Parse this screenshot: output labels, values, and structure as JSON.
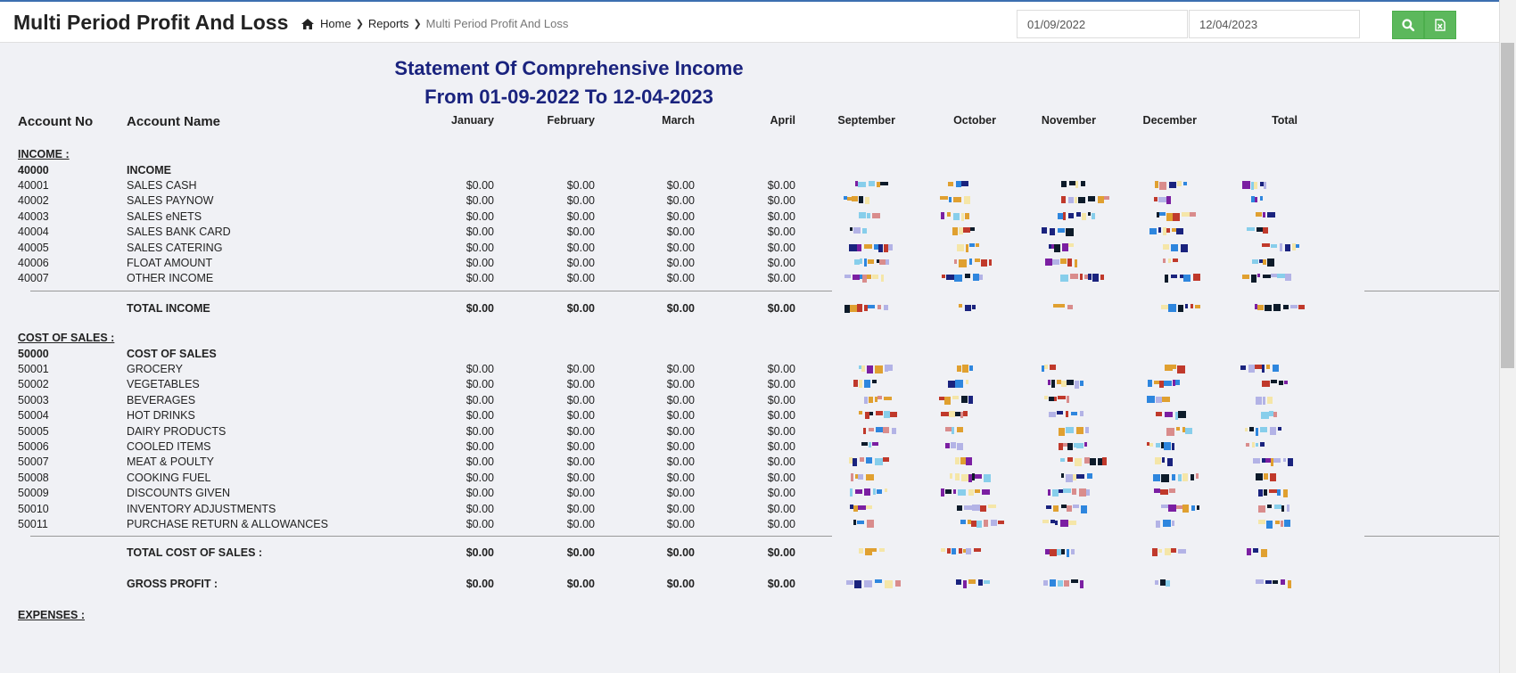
{
  "header": {
    "title": "Multi Period Profit And Loss",
    "breadcrumb": {
      "home": "Home",
      "reports": "Reports",
      "current": "Multi Period Profit And Loss"
    },
    "date_from": "01/09/2022",
    "date_to": "12/04/2023",
    "search_icon": "search-icon",
    "excel_icon": "excel-icon",
    "accent_color": "#5cb85c"
  },
  "statement": {
    "title": "Statement Of Comprehensive Income",
    "period": "From 01-09-2022 To 12-04-2023"
  },
  "columns": {
    "account_no": "Account No",
    "account_name": "Account Name",
    "months": [
      "January",
      "February",
      "March",
      "April",
      "September",
      "October",
      "November",
      "December",
      "Total"
    ]
  },
  "income": {
    "section_label": "INCOME :",
    "group": {
      "no": "40000",
      "name": "INCOME"
    },
    "rows": [
      {
        "no": "40001",
        "name": "SALES CASH",
        "values": [
          "$0.00",
          "$0.00",
          "$0.00",
          "$0.00"
        ]
      },
      {
        "no": "40002",
        "name": "SALES PAYNOW",
        "values": [
          "$0.00",
          "$0.00",
          "$0.00",
          "$0.00"
        ]
      },
      {
        "no": "40003",
        "name": "SALES eNETS",
        "values": [
          "$0.00",
          "$0.00",
          "$0.00",
          "$0.00"
        ]
      },
      {
        "no": "40004",
        "name": "SALES BANK CARD",
        "values": [
          "$0.00",
          "$0.00",
          "$0.00",
          "$0.00"
        ]
      },
      {
        "no": "40005",
        "name": "SALES CATERING",
        "values": [
          "$0.00",
          "$0.00",
          "$0.00",
          "$0.00"
        ]
      },
      {
        "no": "40006",
        "name": "FLOAT AMOUNT",
        "values": [
          "$0.00",
          "$0.00",
          "$0.00",
          "$0.00"
        ]
      },
      {
        "no": "40007",
        "name": "OTHER INCOME",
        "values": [
          "$0.00",
          "$0.00",
          "$0.00",
          "$0.00"
        ]
      }
    ],
    "total": {
      "label": "TOTAL INCOME",
      "values": [
        "$0.00",
        "$0.00",
        "$0.00",
        "$0.00"
      ]
    }
  },
  "cost_of_sales": {
    "section_label": "COST OF SALES :",
    "group": {
      "no": "50000",
      "name": "COST OF SALES"
    },
    "rows": [
      {
        "no": "50001",
        "name": "GROCERY",
        "values": [
          "$0.00",
          "$0.00",
          "$0.00",
          "$0.00"
        ]
      },
      {
        "no": "50002",
        "name": "VEGETABLES",
        "values": [
          "$0.00",
          "$0.00",
          "$0.00",
          "$0.00"
        ]
      },
      {
        "no": "50003",
        "name": "BEVERAGES",
        "values": [
          "$0.00",
          "$0.00",
          "$0.00",
          "$0.00"
        ]
      },
      {
        "no": "50004",
        "name": "HOT DRINKS",
        "values": [
          "$0.00",
          "$0.00",
          "$0.00",
          "$0.00"
        ]
      },
      {
        "no": "50005",
        "name": "DAIRY PRODUCTS",
        "values": [
          "$0.00",
          "$0.00",
          "$0.00",
          "$0.00"
        ]
      },
      {
        "no": "50006",
        "name": "COOLED ITEMS",
        "values": [
          "$0.00",
          "$0.00",
          "$0.00",
          "$0.00"
        ]
      },
      {
        "no": "50007",
        "name": "MEAT & POULTY",
        "values": [
          "$0.00",
          "$0.00",
          "$0.00",
          "$0.00"
        ]
      },
      {
        "no": "50008",
        "name": "COOKING FUEL",
        "values": [
          "$0.00",
          "$0.00",
          "$0.00",
          "$0.00"
        ]
      },
      {
        "no": "50009",
        "name": "DISCOUNTS GIVEN",
        "values": [
          "$0.00",
          "$0.00",
          "$0.00",
          "$0.00"
        ]
      },
      {
        "no": "50010",
        "name": "INVENTORY ADJUSTMENTS",
        "values": [
          "$0.00",
          "$0.00",
          "$0.00",
          "$0.00"
        ]
      },
      {
        "no": "50011",
        "name": "PURCHASE RETURN & ALLOWANCES",
        "values": [
          "$0.00",
          "$0.00",
          "$0.00",
          "$0.00"
        ]
      }
    ],
    "total": {
      "label": "TOTAL COST OF SALES :",
      "values": [
        "$0.00",
        "$0.00",
        "$0.00",
        "$0.00"
      ]
    }
  },
  "gross_profit": {
    "label": "GROSS PROFIT :",
    "values": [
      "$0.00",
      "$0.00",
      "$0.00",
      "$0.00"
    ]
  },
  "expenses": {
    "section_label": "EXPENSES :"
  },
  "pixelated_palette": [
    "#1a237e",
    "#e0a030",
    "#87ceeb",
    "#2e86de",
    "#0d1b2a",
    "#7b1fa2",
    "#f5e6a8",
    "#c0392b",
    "#b3b3e6",
    "#d98c8c"
  ]
}
